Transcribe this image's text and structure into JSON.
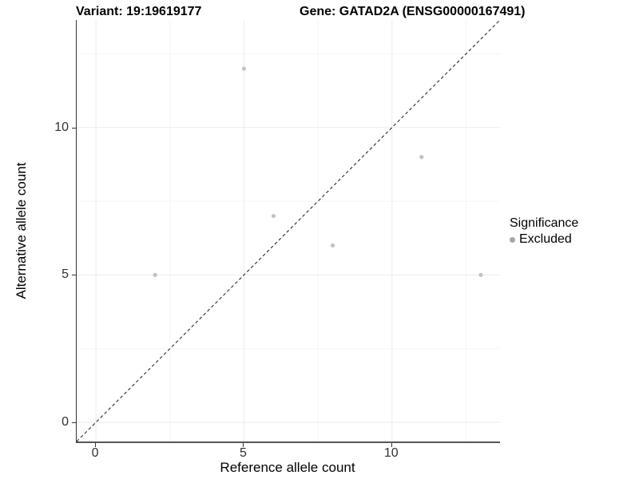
{
  "header": {
    "variant_title": "Variant: 19:19619177",
    "gene_title": "Gene: GATAD2A (ENSG00000167491)"
  },
  "chart_data": {
    "type": "scatter",
    "xlabel": "Reference allele count",
    "ylabel": "Alternative allele count",
    "xlim": [
      -0.65,
      13.65
    ],
    "ylim": [
      -0.65,
      13.65
    ],
    "x_major_ticks": [
      0,
      5,
      10
    ],
    "y_major_ticks": [
      0,
      5,
      10
    ],
    "x_minor_gridlines": [
      2.5,
      7.5,
      12.5
    ],
    "y_minor_gridlines": [
      2.5,
      7.5,
      12.5
    ],
    "grid": true,
    "series": [
      {
        "name": "Excluded",
        "point_color": "#c3c3c3",
        "points": [
          {
            "x": 2,
            "y": 5
          },
          {
            "x": 5,
            "y": 12
          },
          {
            "x": 6,
            "y": 7
          },
          {
            "x": 8,
            "y": 6
          },
          {
            "x": 11,
            "y": 9
          },
          {
            "x": 13,
            "y": 5
          }
        ]
      }
    ],
    "identity_line": {
      "style": "dashed",
      "slope": 1,
      "intercept": 0,
      "color": "#1a1a1a"
    },
    "legend": {
      "position": "right",
      "title": "Significance",
      "items": [
        {
          "label": "Excluded",
          "color": "#a6a6a6"
        }
      ]
    },
    "colors": {
      "major_grid": "#ebebeb",
      "minor_grid": "#f5f5f5",
      "axis_line": "#333333",
      "tick_text": "#303030"
    }
  }
}
